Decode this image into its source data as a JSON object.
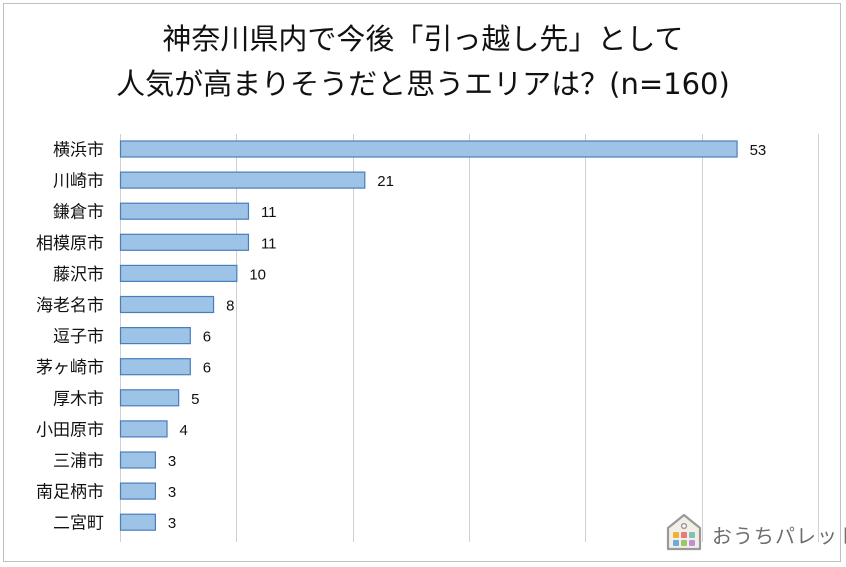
{
  "title": {
    "line1": "神奈川県内で今後「引っ越し先」として",
    "line2": "人気が高まりそうだと思うエリアは？(n=160)"
  },
  "chart_data": {
    "type": "bar",
    "orientation": "horizontal",
    "categories": [
      "横浜市",
      "川崎市",
      "鎌倉市",
      "相模原市",
      "藤沢市",
      "海老名市",
      "逗子市",
      "茅ヶ崎市",
      "厚木市",
      "小田原市",
      "三浦市",
      "南足柄市",
      "二宮町"
    ],
    "values": [
      53,
      21,
      11,
      11,
      10,
      8,
      6,
      6,
      5,
      4,
      3,
      3,
      3
    ],
    "xlim": [
      0,
      60
    ],
    "grid": true,
    "data_labels": true,
    "bar_color": "#9dc3e6",
    "bar_border_color": "#4a7ebb"
  },
  "branding": {
    "logo_text": "おうちパレット",
    "icon": "house-icon"
  }
}
